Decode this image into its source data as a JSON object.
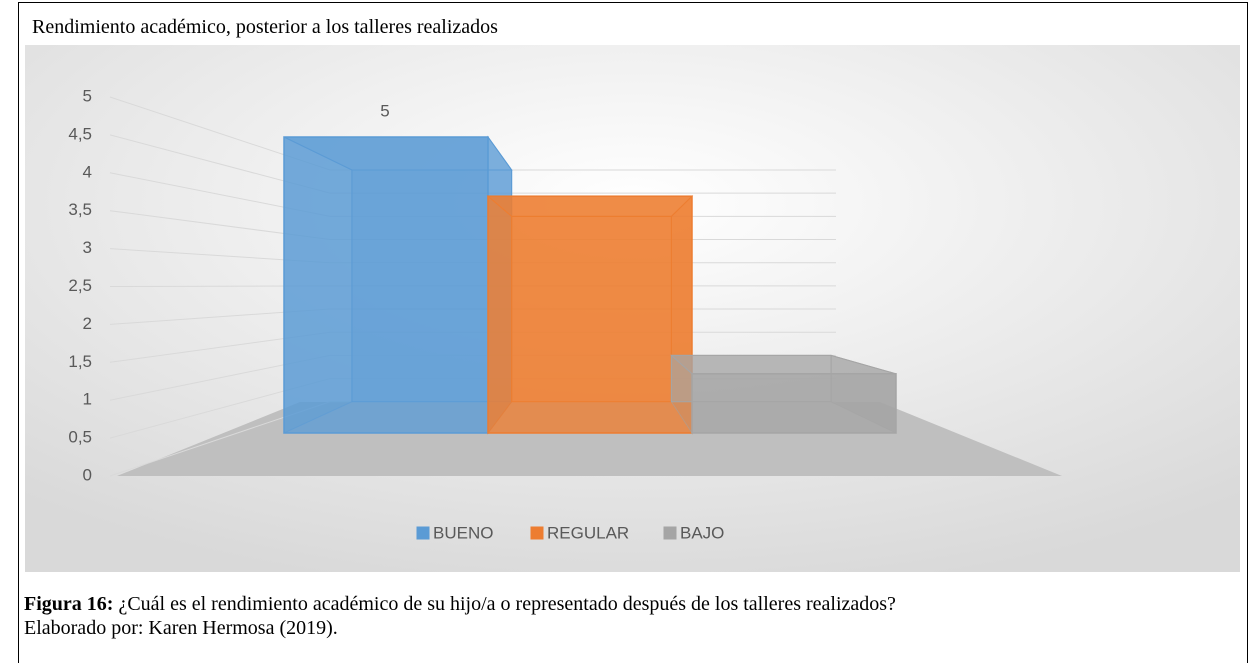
{
  "title": "Rendimiento académico, posterior a los talleres realizados",
  "chart_data": {
    "type": "bar",
    "categories": [
      null
    ],
    "series": [
      {
        "name": "BUENO",
        "color": "#5b9bd5",
        "values": [
          5
        ]
      },
      {
        "name": "REGULAR",
        "color": "#ed7d31",
        "values": [
          4
        ]
      },
      {
        "name": "BAJO",
        "color": "#a5a5a5",
        "values": [
          1
        ]
      }
    ],
    "ylim": [
      0,
      5
    ],
    "yticks": [
      0,
      {
        "value": 0.5,
        "label": "0,5"
      },
      1,
      {
        "value": 1.5,
        "label": "1,5"
      },
      2,
      {
        "value": 2.5,
        "label": "2,5"
      },
      3,
      {
        "value": 3.5,
        "label": "3,5"
      },
      4,
      {
        "value": 4.5,
        "label": "4,5"
      },
      5
    ],
    "grid": true,
    "legend": "bottom"
  },
  "caption": {
    "label": "Figura 16:",
    "text": "¿Cuál es el rendimiento académico de su hijo/a o representado después de los talleres realizados?",
    "source": "Elaborado por: Karen Hermosa (2019)."
  }
}
